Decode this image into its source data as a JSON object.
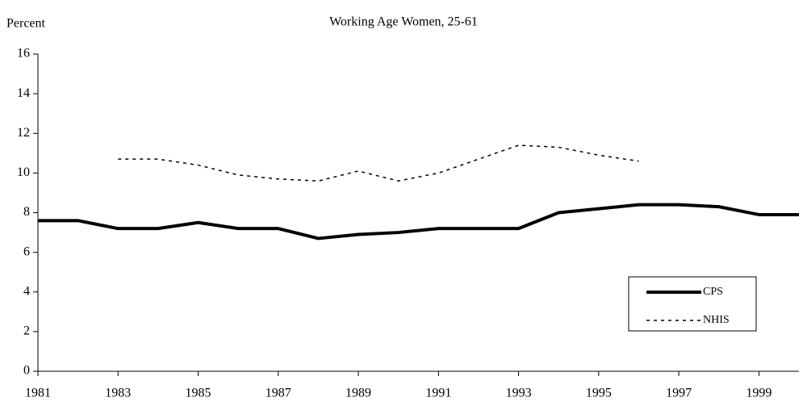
{
  "chart_data": {
    "type": "line",
    "title": "Working Age Women, 25-61",
    "y_label": "Percent",
    "x": [
      1981,
      1982,
      1983,
      1984,
      1985,
      1986,
      1987,
      1988,
      1989,
      1990,
      1991,
      1992,
      1993,
      1994,
      1995,
      1996,
      1997,
      1998,
      1999,
      2000
    ],
    "series": [
      {
        "name": "CPS",
        "color": "#000000",
        "dash": "solid",
        "values": [
          7.6,
          7.6,
          7.2,
          7.2,
          7.5,
          7.2,
          7.2,
          6.7,
          6.9,
          7.0,
          7.2,
          7.2,
          7.2,
          8.0,
          8.2,
          8.4,
          8.4,
          8.3,
          7.9,
          7.9
        ]
      },
      {
        "name": "NHIS",
        "color": "#000000",
        "dash": "dotted",
        "values": [
          null,
          null,
          10.7,
          10.7,
          10.4,
          9.9,
          9.7,
          9.6,
          10.1,
          9.6,
          10.0,
          10.7,
          11.4,
          11.3,
          10.9,
          10.6,
          null,
          null,
          null,
          null
        ]
      }
    ],
    "xlim": [
      1981,
      2000
    ],
    "xticks": [
      1981,
      1983,
      1985,
      1987,
      1989,
      1991,
      1993,
      1995,
      1997,
      1999
    ],
    "ylim": [
      0,
      16
    ],
    "yticks": [
      0,
      2,
      4,
      6,
      8,
      10,
      12,
      14,
      16
    ],
    "grid": false,
    "legend": "lower right"
  }
}
